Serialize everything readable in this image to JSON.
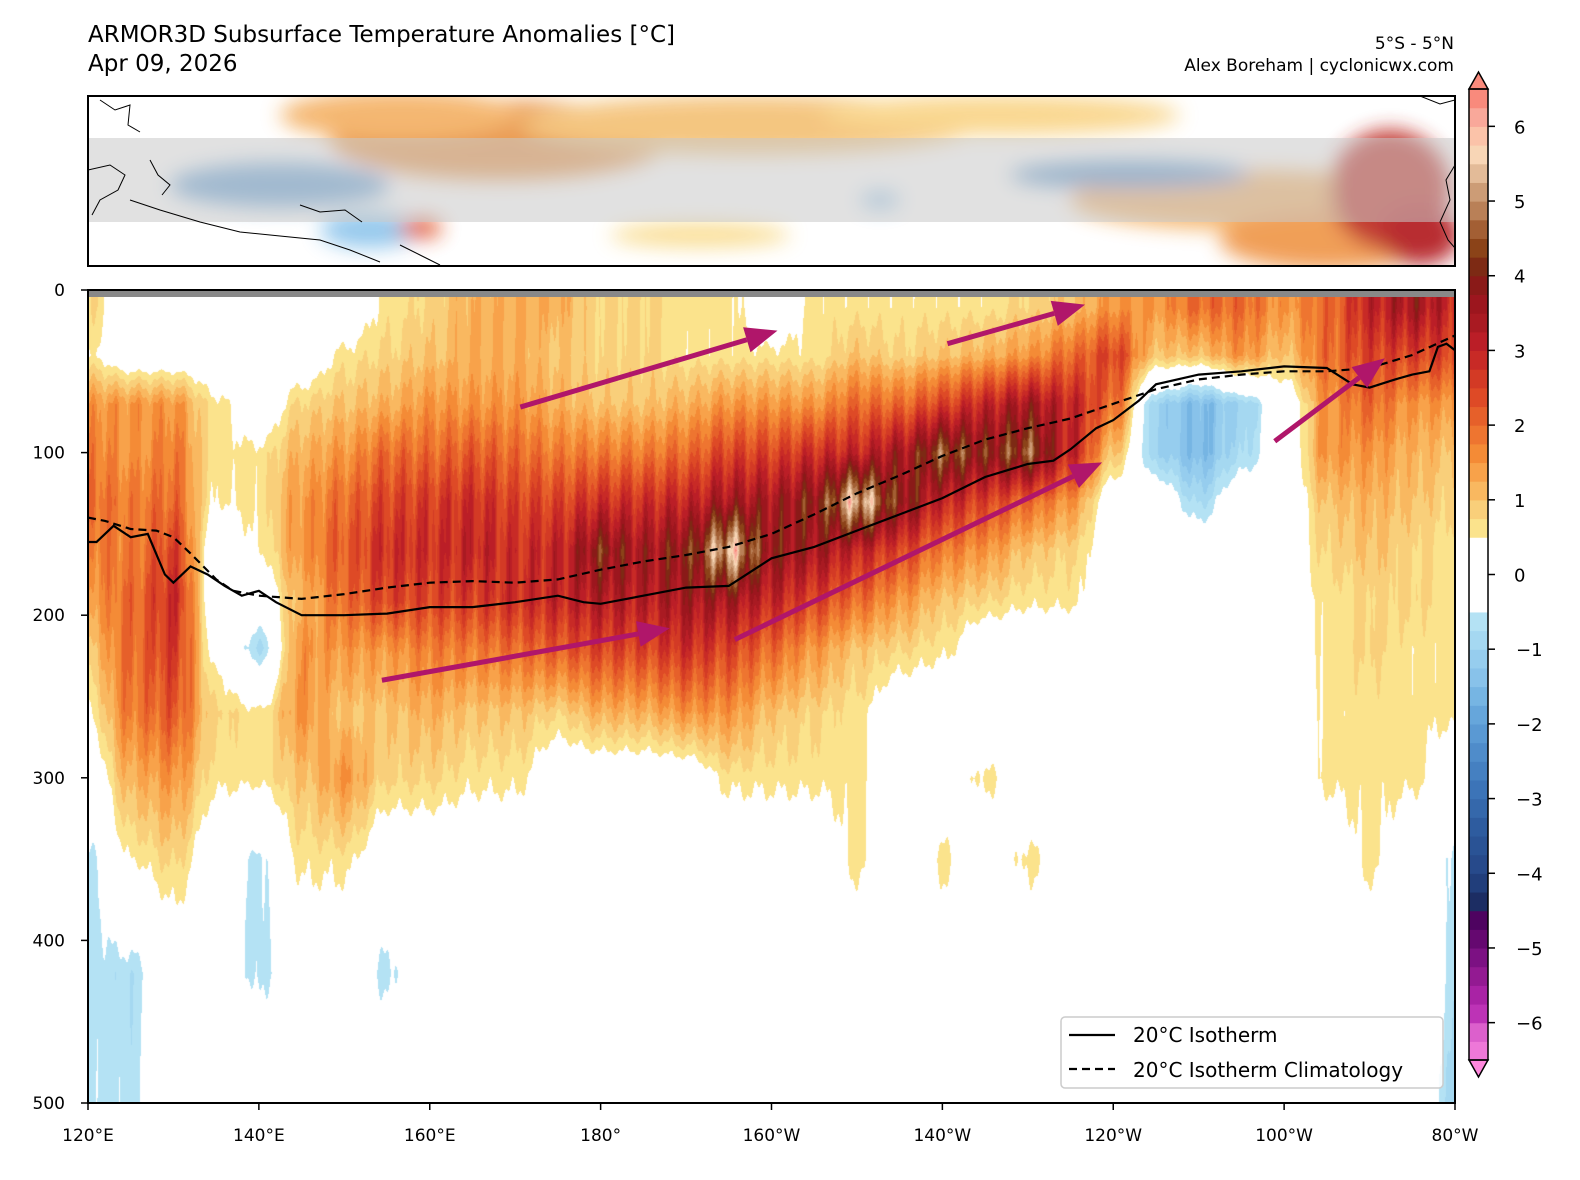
{
  "header": {
    "title": "ARMOR3D Subsurface Temperature Anomalies [°C]",
    "date": "Apr 09, 2026",
    "region": "5°S - 5°N",
    "credit": "Alex Boreham | cyclonicwx.com"
  },
  "colors": {
    "arrow": "#b0166a",
    "gray_band": "#c8c8c8",
    "surface_bar": "#888888"
  },
  "chart_data": {
    "type": "heatmap",
    "title": "ARMOR3D Subsurface Temperature Anomalies [°C]",
    "xlim": [
      120,
      280
    ],
    "ylim": [
      500,
      0
    ],
    "y_inverted": true,
    "x_ticks": [
      120,
      140,
      160,
      180,
      200,
      220,
      240,
      260,
      280
    ],
    "x_tick_labels": [
      "120°E",
      "140°E",
      "160°E",
      "180°",
      "160°W",
      "140°W",
      "120°W",
      "100°W",
      "80°W"
    ],
    "y_ticks": [
      0,
      100,
      200,
      300,
      400,
      500
    ],
    "y_tick_labels": [
      "0",
      "100",
      "200",
      "300",
      "400",
      "500"
    ],
    "colorbar": {
      "range": [
        -6.5,
        6.5
      ],
      "ticks": [
        -6,
        -5,
        -4,
        -3,
        -2,
        -1,
        0,
        1,
        2,
        3,
        4,
        5,
        6
      ],
      "tick_labels": [
        "−6",
        "−5",
        "−4",
        "−3",
        "−2",
        "−1",
        "0",
        "1",
        "2",
        "3",
        "4",
        "5",
        "6"
      ],
      "step": 0.25,
      "white_band": [
        -0.5,
        0.5
      ],
      "positive_colors": [
        "#fbe38c",
        "#f9cf7a",
        "#f9b860",
        "#f8a24a",
        "#f48b36",
        "#ee7530",
        "#e6602a",
        "#de4a26",
        "#d33a25",
        "#c82a26",
        "#bb1e27",
        "#a91a22",
        "#9c161e",
        "#8a1a18",
        "#7d2a14",
        "#8b4318",
        "#a35f34",
        "#b98057",
        "#cc9c76",
        "#e3bb98",
        "#f8d6b6",
        "#fbc3a9",
        "#f9a89a",
        "#f98a7c"
      ],
      "negative_colors": [
        "#b4e2f4",
        "#a5d8f1",
        "#96cdee",
        "#88c2ea",
        "#76b5e3",
        "#66a6db",
        "#5a99d3",
        "#4f8cca",
        "#4580c1",
        "#3c74b8",
        "#3568ab",
        "#2e5c9f",
        "#2a5395",
        "#274a8b",
        "#213e7b",
        "#1c2d63",
        "#4e0360",
        "#650870",
        "#7c1183",
        "#931a92",
        "#a923a5",
        "#bd33b6",
        "#dc60cc",
        "#ee78d8"
      ],
      "extend_high": "#f98a7c",
      "extend_low": "#ff88dd"
    },
    "heatmap": {
      "lon": [
        120,
        125,
        130,
        135,
        140,
        145,
        150,
        155,
        160,
        165,
        170,
        175,
        180,
        185,
        190,
        195,
        200,
        205,
        210,
        215,
        220,
        225,
        230,
        235,
        240,
        245,
        250,
        255,
        260,
        265,
        270,
        275,
        280
      ],
      "depth": [
        10,
        40,
        70,
        100,
        130,
        160,
        190,
        220,
        260,
        300,
        350,
        420,
        490
      ],
      "z_by_lon": [
        [
          0.8,
          0.5,
          1.5,
          1.8,
          2,
          1.8,
          1.5,
          1,
          0.5,
          0,
          -0.6,
          -0.6,
          -0.6
        ],
        [
          0,
          0,
          1.5,
          1.5,
          1.8,
          1.8,
          2,
          2,
          1.8,
          1.2,
          0.5,
          -0.7,
          -0.6
        ],
        [
          0,
          0,
          1.5,
          1.8,
          2,
          2.5,
          2.8,
          2.6,
          2.2,
          1.5,
          0.8,
          0,
          0
        ],
        [
          0,
          0,
          0.6,
          0.6,
          0.5,
          0,
          0,
          0.3,
          0.8,
          0.6,
          0,
          0,
          0
        ],
        [
          0,
          0,
          0,
          0.6,
          0.6,
          0.5,
          0,
          -0.8,
          0.6,
          0.6,
          -0.6,
          -0.6,
          0
        ],
        [
          0,
          0,
          0.8,
          1.2,
          1.5,
          1.5,
          1.2,
          1.5,
          1.5,
          1,
          0.6,
          0,
          0
        ],
        [
          0,
          0.6,
          1,
          1.5,
          2,
          2.2,
          2,
          1.5,
          1,
          1.5,
          0.6,
          0,
          0
        ],
        [
          0.6,
          0.8,
          1.2,
          2,
          2.5,
          2.8,
          2.5,
          1.5,
          1,
          0.8,
          0,
          -0.6,
          0
        ],
        [
          0.8,
          1,
          1.5,
          2,
          2.6,
          2.8,
          2.5,
          1.8,
          1.2,
          0.8,
          0,
          0,
          0
        ],
        [
          1.2,
          1.2,
          1.5,
          2.2,
          2.8,
          3,
          2.6,
          1.8,
          1,
          0.6,
          0,
          0,
          0
        ],
        [
          1.2,
          1.2,
          1.5,
          2,
          2.5,
          2.8,
          2.8,
          2,
          1,
          0.6,
          0,
          0,
          0
        ],
        [
          1.2,
          1,
          1.2,
          1.8,
          2.5,
          3,
          3,
          2.2,
          0.8,
          0,
          0,
          0,
          0
        ],
        [
          0.8,
          0.8,
          1,
          1.8,
          2.8,
          4,
          3.3,
          2.5,
          1.2,
          0,
          0,
          0,
          0
        ],
        [
          0.8,
          0.8,
          1,
          1.8,
          2.8,
          3.5,
          3.2,
          2.5,
          1.2,
          0,
          0,
          0,
          0
        ],
        [
          0.6,
          0.6,
          1.2,
          2,
          3,
          4,
          3.5,
          2.8,
          1.5,
          0,
          0,
          0,
          0
        ],
        [
          0.6,
          0.6,
          1.5,
          2.5,
          3.5,
          5.5,
          3.5,
          2.5,
          1.5,
          0.6,
          0,
          0,
          0
        ],
        [
          0,
          0.6,
          1.5,
          2.5,
          3.5,
          3.8,
          3,
          2,
          1,
          0.6,
          0,
          0,
          0
        ],
        [
          0.6,
          0.6,
          1.5,
          2.8,
          4,
          3.5,
          2.5,
          1.5,
          0.8,
          0.6,
          0,
          0,
          0
        ],
        [
          0.6,
          1,
          2,
          3,
          5.5,
          3,
          2,
          1,
          0.6,
          0.6,
          0.6,
          0,
          0
        ],
        [
          0.6,
          0.8,
          2,
          3.5,
          4,
          2.5,
          1.5,
          0.8,
          0,
          0,
          0,
          0,
          0
        ],
        [
          0.6,
          1,
          2.5,
          4.5,
          3,
          1.8,
          1,
          0.6,
          0,
          0,
          0.6,
          0,
          0
        ],
        [
          0.6,
          1.2,
          3,
          4,
          2.5,
          1.5,
          0.8,
          0,
          0,
          0.6,
          0,
          0,
          0
        ],
        [
          0.8,
          1.5,
          3.5,
          4.5,
          2,
          1,
          0.6,
          0,
          0,
          0,
          0.6,
          0,
          0
        ],
        [
          1,
          2,
          3,
          3,
          1.5,
          0.8,
          0.6,
          0,
          0,
          0,
          0,
          0,
          0
        ],
        [
          1.5,
          2.5,
          2,
          1,
          0,
          0,
          0,
          0,
          0,
          0,
          0,
          0,
          0
        ],
        [
          1.5,
          1,
          -1,
          -1,
          0,
          0,
          0,
          0,
          0,
          0,
          0,
          0,
          0
        ],
        [
          2,
          1,
          -1.5,
          -1.5,
          -0.8,
          0,
          0,
          0,
          0,
          0,
          0,
          0,
          0
        ],
        [
          2,
          1.5,
          -1,
          -0.8,
          0,
          0,
          0,
          0,
          0,
          0,
          0,
          0,
          0
        ],
        [
          1.5,
          1,
          0,
          0,
          0,
          0,
          0,
          0,
          0,
          0,
          0,
          0,
          0
        ],
        [
          2,
          2,
          1.5,
          1.5,
          1,
          0.8,
          0.6,
          0.6,
          0.6,
          0.6,
          0,
          0,
          0
        ],
        [
          3,
          2.5,
          2,
          1.5,
          1.2,
          1,
          0.8,
          0.8,
          0.6,
          0.6,
          0.6,
          0,
          0
        ],
        [
          3.5,
          2.5,
          1.5,
          1.2,
          1,
          0.8,
          0.8,
          0.6,
          0.6,
          0.6,
          0,
          0,
          0
        ],
        [
          3,
          2.5,
          1.5,
          1,
          0.8,
          0.6,
          0.6,
          0.6,
          0.6,
          0,
          -0.6,
          -0.6,
          -0.8
        ]
      ]
    },
    "series": [
      {
        "name": "20°C Isotherm",
        "style": "solid",
        "lon": [
          120,
          121,
          123,
          125,
          127,
          129,
          130,
          132,
          134,
          136,
          138,
          140,
          142,
          145,
          148,
          150,
          155,
          160,
          165,
          170,
          175,
          178,
          180,
          185,
          190,
          195,
          200,
          205,
          210,
          215,
          220,
          225,
          230,
          233,
          235,
          238,
          240,
          243,
          245,
          250,
          255,
          260,
          265,
          268,
          270,
          273,
          275,
          277,
          278,
          279,
          280
        ],
        "depth": [
          155,
          155,
          145,
          152,
          150,
          175,
          180,
          170,
          175,
          182,
          188,
          185,
          192,
          200,
          200,
          200,
          199,
          195,
          195,
          192,
          188,
          192,
          193,
          188,
          183,
          182,
          165,
          158,
          148,
          138,
          128,
          115,
          107,
          105,
          98,
          85,
          80,
          68,
          58,
          52,
          50,
          47,
          48,
          58,
          60,
          55,
          52,
          50,
          35,
          33,
          37
        ]
      },
      {
        "name": "20°C Isotherm Climatology",
        "style": "dashed",
        "lon": [
          120,
          122,
          125,
          128,
          130,
          132,
          135,
          137,
          140,
          145,
          150,
          155,
          160,
          165,
          170,
          175,
          180,
          185,
          190,
          195,
          200,
          205,
          210,
          215,
          220,
          225,
          230,
          235,
          240,
          245,
          250,
          255,
          260,
          265,
          270,
          275,
          280
        ],
        "depth": [
          140,
          142,
          147,
          148,
          152,
          162,
          178,
          185,
          188,
          190,
          187,
          183,
          180,
          179,
          180,
          178,
          172,
          167,
          163,
          158,
          150,
          138,
          125,
          114,
          102,
          92,
          85,
          79,
          70,
          61,
          55,
          52,
          50,
          50,
          48,
          40,
          28
        ]
      }
    ],
    "legend": {
      "position": "lower-right",
      "entries": [
        "20°C Isotherm",
        "20°C Isotherm Climatology"
      ]
    },
    "annotations": {
      "arrows": [
        {
          "from": [
            170.6,
            72
          ],
          "to": [
            200.7,
            25
          ]
        },
        {
          "from": [
            220.6,
            33
          ],
          "to": [
            236.7,
            9
          ]
        },
        {
          "from": [
            154.4,
            240
          ],
          "to": [
            188.1,
            208
          ]
        },
        {
          "from": [
            195.7,
            215
          ],
          "to": [
            238.7,
            106
          ]
        },
        {
          "from": [
            258.9,
            93
          ],
          "to": [
            271.8,
            42
          ]
        }
      ]
    },
    "inset_map": {
      "shaded_band": "5°S - 5°N"
    }
  }
}
